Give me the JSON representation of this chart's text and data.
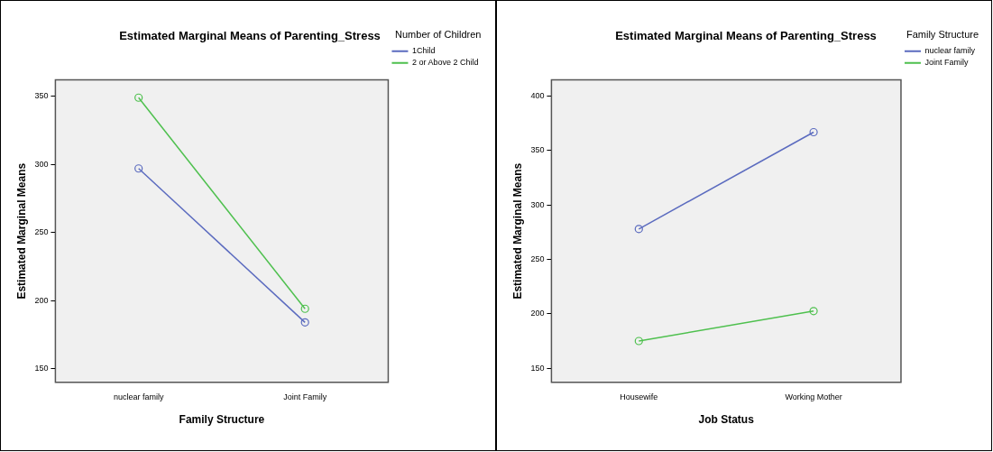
{
  "chart_data": [
    {
      "type": "line",
      "title": "Estimated Marginal Means of Parenting_Stress",
      "xlabel": "Family Structure",
      "ylabel": "Estimated Marginal Means",
      "legend_title": "Number of Children",
      "categories": [
        "nuclear family",
        "Joint Family"
      ],
      "series": [
        {
          "name": "1Child",
          "color": "#5b6bbf",
          "values": [
            297,
            184
          ]
        },
        {
          "name": "2 or Above 2 Child",
          "color": "#4ec04e",
          "values": [
            349,
            194
          ]
        }
      ],
      "ylim": [
        140,
        362
      ],
      "yticks": [
        150,
        200,
        250,
        300,
        350
      ],
      "grid": false,
      "legend": "top right",
      "marker": "circle",
      "line_style": "solid"
    },
    {
      "type": "line",
      "title": "Estimated Marginal Means of Parenting_Stress",
      "xlabel": "Job Status",
      "ylabel": "Estimated Marginal Means",
      "legend_title": "Family Structure",
      "categories": [
        "Housewife",
        "Working Mother"
      ],
      "series": [
        {
          "name": "nuclear family",
          "color": "#5b6bbf",
          "values": [
            278,
            367
          ]
        },
        {
          "name": "Joint Family",
          "color": "#4ec04e",
          "values": [
            175,
            202.5
          ]
        }
      ],
      "ylim": [
        137,
        415
      ],
      "yticks": [
        150,
        200,
        250,
        300,
        350,
        400
      ],
      "grid": false,
      "legend": "top right",
      "marker": "circle",
      "line_style": "solid"
    }
  ]
}
